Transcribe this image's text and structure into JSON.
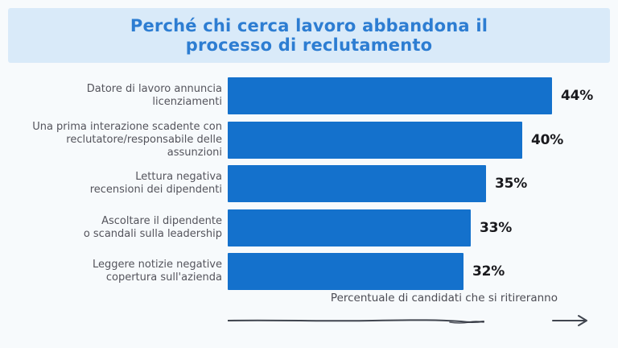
{
  "header": {
    "title": "Perché chi cerca lavoro abbandona il processo di reclutamento",
    "title_lines": [
      "Perché chi cerca lavoro abbandona il",
      "processo di reclutamento"
    ]
  },
  "chart_data": {
    "type": "bar",
    "orientation": "horizontal",
    "title": "Perché chi cerca lavoro abbandona il processo di reclutamento",
    "categories": [
      "Datore di lavoro annuncia licenziamenti",
      "Una prima interazione scadente con reclutatore/responsabile delle assunzioni",
      "Lettura negativa recensioni dei dipendenti",
      "Ascoltare il dipendente o scandali sulla leadership",
      "Leggere notizie negative copertura sull'azienda"
    ],
    "category_lines": [
      [
        "Datore di lavoro annuncia",
        "licenziamenti"
      ],
      [
        "Una prima interazione scadente con",
        "reclutatore/responsabile delle",
        "assunzioni"
      ],
      [
        "Lettura negativa",
        "recensioni dei dipendenti"
      ],
      [
        "Ascoltare il dipendente",
        "o scandali sulla leadership"
      ],
      [
        "Leggere notizie negative",
        "copertura sull'azienda"
      ]
    ],
    "values": [
      44,
      40,
      35,
      33,
      32
    ],
    "value_labels": [
      "44%",
      "40%",
      "35%",
      "33%",
      "32%"
    ],
    "xlabel": "Percentuale di candidati che si ritireranno",
    "xlim": [
      0,
      50
    ],
    "grid": false,
    "legend": false,
    "value_labels_position": "right-of-bar"
  },
  "colors": {
    "background": "#f7fafc",
    "banner_background": "#d9eaf9",
    "title_text": "#2d7dd2",
    "bar": "#1471cc",
    "category_text": "#54545c",
    "value_text": "#19191d",
    "axis_text": "#4c4c54",
    "axis_line": "#40454f"
  }
}
